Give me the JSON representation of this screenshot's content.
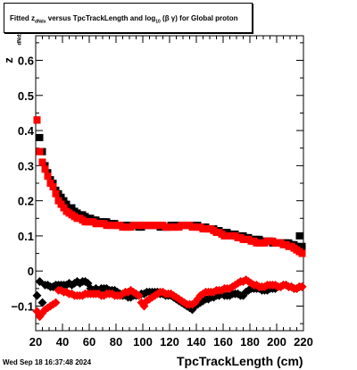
{
  "title": {
    "prefix": "Fitted",
    "z_symbol": "z",
    "z_sub": "dNdx",
    "middle": "versus TpcTrackLength and log",
    "log_sub": "10",
    "beta_gamma": "(β γ)",
    "suffix": "for Global proton"
  },
  "footer_timestamp": "Wed Sep 18 16:37:48 2024",
  "chart_data": {
    "type": "scatter",
    "xlabel": "TpcTrackLength (cm)",
    "ylabel": "z",
    "ylabel_sub": "dNdx",
    "xlim": [
      20,
      220
    ],
    "ylim": [
      -0.17,
      0.67
    ],
    "x_ticks": [
      20,
      40,
      60,
      80,
      100,
      120,
      140,
      160,
      180,
      200,
      220
    ],
    "y_ticks": [
      -0.1,
      0,
      0.1,
      0.2,
      0.3,
      0.4,
      0.5,
      0.6
    ],
    "y_tick_labels": [
      "−0.1",
      "0",
      "0.1",
      "0.2",
      "0.3",
      "0.4",
      "0.5",
      "0.6"
    ],
    "series": [
      {
        "color": "#000000",
        "marker": "square",
        "x": [
          21,
          23,
          25,
          27,
          29,
          31,
          33,
          35,
          37,
          39,
          41,
          43,
          45,
          47,
          49,
          51,
          53,
          55,
          57,
          59,
          61,
          63,
          65,
          67,
          69,
          71,
          73,
          75,
          77,
          79,
          81,
          83,
          85,
          87,
          89,
          91,
          93,
          95,
          97,
          99,
          101,
          103,
          105,
          107,
          109,
          111,
          113,
          115,
          117,
          119,
          121,
          123,
          125,
          127,
          129,
          131,
          133,
          135,
          137,
          139,
          141,
          143,
          145,
          147,
          149,
          151,
          153,
          155,
          157,
          159,
          161,
          163,
          165,
          167,
          169,
          171,
          173,
          175,
          177,
          179,
          181,
          183,
          185,
          187,
          189,
          191,
          193,
          195,
          197,
          199,
          201,
          203,
          205,
          207,
          209,
          211,
          213,
          215,
          217,
          219
        ],
        "y": [
          0.43,
          0.38,
          0.34,
          0.3,
          0.28,
          0.26,
          0.25,
          0.23,
          0.22,
          0.21,
          0.2,
          0.19,
          0.18,
          0.18,
          0.17,
          0.165,
          0.16,
          0.16,
          0.155,
          0.15,
          0.15,
          0.145,
          0.145,
          0.14,
          0.14,
          0.14,
          0.14,
          0.135,
          0.135,
          0.135,
          0.13,
          0.13,
          0.13,
          0.13,
          0.13,
          0.13,
          0.13,
          0.13,
          0.125,
          0.125,
          0.13,
          0.13,
          0.13,
          0.13,
          0.13,
          0.13,
          0.125,
          0.125,
          0.125,
          0.125,
          0.13,
          0.13,
          0.13,
          0.13,
          0.13,
          0.13,
          0.13,
          0.13,
          0.13,
          0.13,
          0.13,
          0.125,
          0.125,
          0.125,
          0.12,
          0.12,
          0.12,
          0.115,
          0.115,
          0.11,
          0.11,
          0.11,
          0.105,
          0.105,
          0.105,
          0.1,
          0.1,
          0.1,
          0.095,
          0.095,
          0.09,
          0.09,
          0.09,
          0.09,
          0.085,
          0.085,
          0.085,
          0.085,
          0.08,
          0.08,
          0.08,
          0.08,
          0.08,
          0.08,
          0.08,
          0.075,
          0.075,
          0.07,
          0.1,
          0.07
        ]
      },
      {
        "color": "#ff0000",
        "marker": "square",
        "x": [
          21,
          23,
          25,
          27,
          29,
          31,
          33,
          35,
          37,
          39,
          41,
          43,
          45,
          47,
          49,
          51,
          53,
          55,
          57,
          59,
          61,
          63,
          65,
          67,
          69,
          71,
          73,
          75,
          77,
          79,
          81,
          83,
          85,
          87,
          89,
          91,
          93,
          95,
          97,
          99,
          101,
          103,
          105,
          107,
          109,
          111,
          113,
          115,
          117,
          119,
          121,
          123,
          125,
          127,
          129,
          131,
          133,
          135,
          137,
          139,
          141,
          143,
          145,
          147,
          149,
          151,
          153,
          155,
          157,
          159,
          161,
          163,
          165,
          167,
          169,
          171,
          173,
          175,
          177,
          179,
          181,
          183,
          185,
          187,
          189,
          191,
          193,
          195,
          197,
          199,
          201,
          203,
          205,
          207,
          209,
          211,
          213,
          215,
          217,
          219
        ],
        "y": [
          0.43,
          0.34,
          0.31,
          0.29,
          0.27,
          0.25,
          0.24,
          0.22,
          0.2,
          0.19,
          0.18,
          0.17,
          0.165,
          0.16,
          0.155,
          0.15,
          0.15,
          0.145,
          0.14,
          0.14,
          0.14,
          0.14,
          0.135,
          0.135,
          0.135,
          0.135,
          0.13,
          0.13,
          0.13,
          0.13,
          0.13,
          0.13,
          0.125,
          0.125,
          0.125,
          0.125,
          0.13,
          0.13,
          0.13,
          0.13,
          0.13,
          0.13,
          0.13,
          0.13,
          0.13,
          0.13,
          0.13,
          0.13,
          0.125,
          0.125,
          0.125,
          0.125,
          0.125,
          0.125,
          0.13,
          0.13,
          0.13,
          0.13,
          0.125,
          0.125,
          0.125,
          0.125,
          0.12,
          0.12,
          0.12,
          0.12,
          0.115,
          0.11,
          0.11,
          0.105,
          0.1,
          0.1,
          0.1,
          0.1,
          0.1,
          0.095,
          0.095,
          0.09,
          0.09,
          0.09,
          0.085,
          0.085,
          0.08,
          0.08,
          0.08,
          0.08,
          0.085,
          0.085,
          0.085,
          0.08,
          0.08,
          0.08,
          0.075,
          0.075,
          0.07,
          0.07,
          0.065,
          0.06,
          0.055,
          0.05
        ]
      },
      {
        "color": "#000000",
        "marker": "diamond",
        "x": [
          21,
          23,
          25,
          27,
          29,
          31,
          33,
          35,
          37,
          39,
          41,
          43,
          45,
          47,
          49,
          51,
          53,
          55,
          57,
          59,
          61,
          63,
          65,
          67,
          69,
          71,
          73,
          75,
          77,
          79,
          81,
          83,
          85,
          87,
          89,
          91,
          93,
          95,
          97,
          99,
          101,
          103,
          105,
          107,
          109,
          111,
          113,
          115,
          117,
          119,
          121,
          123,
          125,
          127,
          129,
          131,
          133,
          135,
          137,
          139,
          141,
          143,
          145,
          147,
          149,
          151,
          153,
          155,
          157,
          159,
          161,
          163,
          165,
          167,
          169,
          171,
          173,
          175,
          177,
          179,
          181,
          183,
          185,
          187,
          189,
          191,
          193,
          195,
          197,
          199,
          201,
          203,
          205,
          207,
          209,
          211,
          213,
          215,
          217,
          219
        ],
        "y": [
          -0.07,
          -0.03,
          -0.09,
          -0.04,
          -0.04,
          -0.045,
          -0.045,
          -0.04,
          -0.04,
          -0.04,
          -0.04,
          -0.04,
          -0.035,
          -0.04,
          -0.035,
          -0.03,
          -0.035,
          -0.03,
          -0.03,
          -0.035,
          -0.05,
          -0.055,
          -0.05,
          -0.055,
          -0.05,
          -0.05,
          -0.05,
          -0.055,
          -0.055,
          -0.055,
          -0.06,
          -0.065,
          -0.07,
          -0.07,
          -0.075,
          -0.075,
          -0.07,
          -0.07,
          -0.07,
          -0.065,
          -0.065,
          -0.06,
          -0.06,
          -0.06,
          -0.06,
          -0.06,
          -0.065,
          -0.065,
          -0.07,
          -0.07,
          -0.07,
          -0.075,
          -0.08,
          -0.085,
          -0.09,
          -0.095,
          -0.1,
          -0.105,
          -0.11,
          -0.1,
          -0.095,
          -0.09,
          -0.085,
          -0.08,
          -0.08,
          -0.075,
          -0.075,
          -0.07,
          -0.07,
          -0.065,
          -0.07,
          -0.07,
          -0.07,
          -0.065,
          -0.065,
          -0.065,
          -0.07,
          -0.07,
          -0.06,
          -0.055,
          -0.05,
          -0.05,
          -0.05,
          -0.05,
          -0.055,
          -0.055,
          -0.055,
          -0.05,
          -0.05,
          -0.05,
          -0.045,
          -0.045,
          -0.04,
          -0.04,
          -0.045,
          -0.045,
          -0.05,
          -0.05,
          -0.045,
          -0.045
        ]
      },
      {
        "color": "#ff0000",
        "marker": "diamond",
        "x": [
          21,
          23,
          25,
          27,
          29,
          31,
          33,
          35,
          37,
          39,
          41,
          43,
          45,
          47,
          49,
          51,
          53,
          55,
          57,
          59,
          61,
          63,
          65,
          67,
          69,
          71,
          73,
          75,
          77,
          79,
          81,
          83,
          85,
          87,
          89,
          91,
          93,
          95,
          97,
          99,
          101,
          103,
          105,
          107,
          109,
          111,
          113,
          115,
          117,
          119,
          121,
          123,
          125,
          127,
          129,
          131,
          133,
          135,
          137,
          139,
          141,
          143,
          145,
          147,
          149,
          151,
          153,
          155,
          157,
          159,
          161,
          163,
          165,
          167,
          169,
          171,
          173,
          175,
          177,
          179,
          181,
          183,
          185,
          187,
          189,
          191,
          193,
          195,
          197,
          199,
          201,
          203,
          205,
          207,
          209,
          211,
          213,
          215,
          217,
          219
        ],
        "y": [
          -0.115,
          -0.13,
          -0.12,
          -0.11,
          -0.105,
          -0.1,
          -0.095,
          -0.09,
          -0.055,
          -0.055,
          -0.06,
          -0.06,
          -0.065,
          -0.065,
          -0.07,
          -0.07,
          -0.07,
          -0.07,
          -0.065,
          -0.065,
          -0.065,
          -0.065,
          -0.065,
          -0.065,
          -0.07,
          -0.07,
          -0.065,
          -0.065,
          -0.065,
          -0.07,
          -0.07,
          -0.07,
          -0.065,
          -0.06,
          -0.06,
          -0.055,
          -0.06,
          -0.065,
          -0.07,
          -0.09,
          -0.1,
          -0.085,
          -0.08,
          -0.075,
          -0.07,
          -0.065,
          -0.06,
          -0.06,
          -0.065,
          -0.065,
          -0.065,
          -0.07,
          -0.075,
          -0.08,
          -0.085,
          -0.09,
          -0.095,
          -0.095,
          -0.095,
          -0.09,
          -0.08,
          -0.07,
          -0.065,
          -0.06,
          -0.06,
          -0.06,
          -0.06,
          -0.055,
          -0.055,
          -0.055,
          -0.05,
          -0.05,
          -0.05,
          -0.045,
          -0.04,
          -0.035,
          -0.03,
          -0.03,
          -0.025,
          -0.03,
          -0.035,
          -0.04,
          -0.04,
          -0.045,
          -0.045,
          -0.045,
          -0.04,
          -0.04,
          -0.04,
          -0.04,
          -0.045,
          -0.045,
          -0.04,
          -0.04,
          -0.045,
          -0.045,
          -0.05,
          -0.05,
          -0.045,
          -0.045
        ]
      }
    ]
  }
}
